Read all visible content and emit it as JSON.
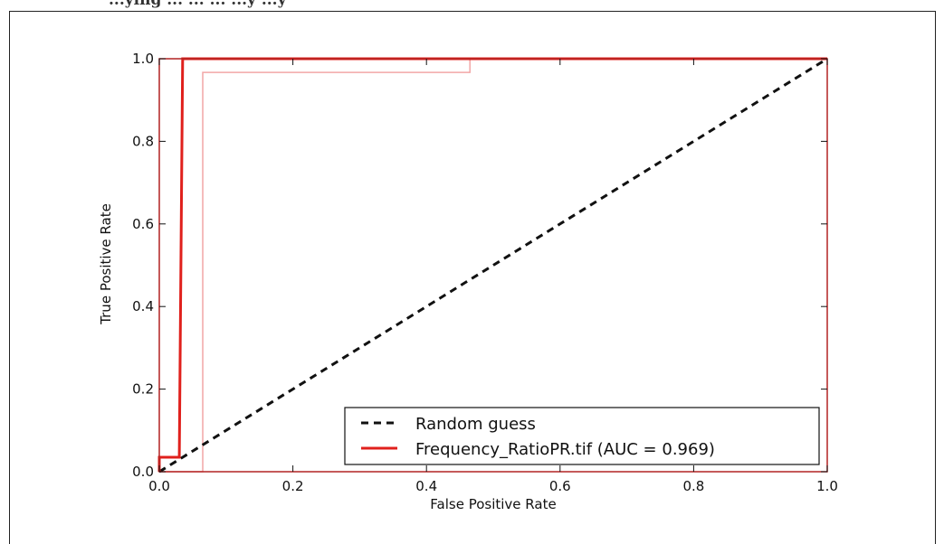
{
  "page": {
    "header_text": "...ying ... ... ... ...y ...y"
  },
  "chart_data": {
    "type": "line",
    "title": "",
    "xlabel": "False Positive Rate",
    "ylabel": "True Positive Rate",
    "xlim": [
      0.0,
      1.0
    ],
    "ylim": [
      0.0,
      1.0
    ],
    "xticks": [
      "0.0",
      "0.2",
      "0.4",
      "0.6",
      "0.8",
      "1.0"
    ],
    "yticks": [
      "0.0",
      "0.2",
      "0.4",
      "0.6",
      "0.8",
      "1.0"
    ],
    "grid": false,
    "legend_position": "lower-right",
    "colors": {
      "axes": "#b22222",
      "roc": "#e0201c",
      "roc_ghost": "#f2a6a6",
      "diagonal": "#111111"
    },
    "series": [
      {
        "name": "Random guess",
        "style": "dashed",
        "x": [
          0.0,
          1.0
        ],
        "y": [
          0.0,
          1.0
        ]
      },
      {
        "name": "Frequency_RatioPR.tif (AUC = 0.969)",
        "style": "solid",
        "x": [
          0.0,
          0.0,
          0.03,
          0.03,
          0.035,
          1.0
        ],
        "y": [
          0.0,
          0.035,
          0.035,
          0.035,
          1.0,
          1.0
        ]
      },
      {
        "style": "faint",
        "x": [
          0.0,
          0.065,
          0.065,
          0.465,
          0.465,
          1.0
        ],
        "y": [
          0.0,
          0.0,
          0.967,
          0.967,
          1.0,
          1.0
        ]
      }
    ]
  }
}
